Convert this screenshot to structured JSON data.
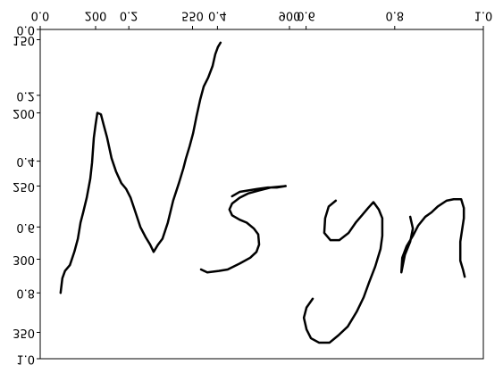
{
  "chart_data": {
    "type": "line",
    "color": "#000000",
    "y_inverted": true,
    "flipped_labels": true,
    "xlim": [
      0,
      1
    ],
    "xticks": [
      {
        "value": 0,
        "label": "0.0"
      },
      0.2,
      0.4,
      0.6,
      0.8,
      {
        "value": 1,
        "label": "1.0"
      }
    ],
    "ylim": [
      0,
      1
    ],
    "yticks": [
      {
        "value": 0,
        "label": "0.0"
      },
      0.2,
      0.4,
      0.6,
      0.8,
      {
        "value": 1,
        "label": "1.0"
      }
    ],
    "x2lim": [
      0,
      1600
    ],
    "x2ticks": [
      200,
      550,
      900
    ],
    "y2lim": [
      143,
      368
    ],
    "y2ticks": [
      150,
      200,
      250,
      300,
      350
    ],
    "series": [
      {
        "x": [
          0.046,
          0.05,
          0.056,
          0.067,
          0.077,
          0.085,
          0.091,
          0.097,
          0.105,
          0.113,
          0.117,
          0.121,
          0.125,
          0.129,
          0.137,
          0.143,
          0.151,
          0.161,
          0.171,
          0.183,
          0.194,
          0.204,
          0.214,
          0.226,
          0.238,
          0.248,
          0.256,
          0.266,
          0.276,
          0.288,
          0.3,
          0.313,
          0.323,
          0.329,
          0.337,
          0.345,
          0.353,
          0.361,
          0.369,
          0.379,
          0.389,
          0.395,
          0.401,
          0.407
        ],
        "values": [
          323,
          313,
          308,
          304,
          295,
          286,
          275,
          268,
          258,
          245,
          234,
          217,
          208,
          200,
          201,
          208,
          217,
          231,
          240,
          248,
          252,
          258,
          267,
          278,
          285,
          290,
          295,
          290,
          286,
          275,
          260,
          248,
          238,
          231,
          223,
          214,
          202,
          191,
          182,
          176,
          168,
          160,
          155,
          152
        ],
        "axis": "y2"
      },
      {
        "x": [
          0.433,
          0.45,
          0.47,
          0.49,
          0.514,
          0.534,
          0.554,
          0.52,
          0.494,
          0.47,
          0.45,
          0.433,
          0.427,
          0.433,
          0.45,
          0.466,
          0.482,
          0.492,
          0.494,
          0.488,
          0.474,
          0.45,
          0.423,
          0.403,
          0.377,
          0.363
        ],
        "values": [
          257,
          254,
          253,
          252,
          251,
          251,
          250,
          251,
          253,
          255,
          258,
          262,
          266,
          270,
          273,
          275,
          279,
          283,
          290,
          295,
          299,
          303,
          307,
          308,
          309,
          307
        ],
        "axis": "y2"
      },
      {
        "x": [
          0.667,
          0.651,
          0.643,
          0.641,
          0.655,
          0.675,
          0.696,
          0.712,
          0.726,
          0.74,
          0.752,
          0.764,
          0.772,
          0.772,
          0.768,
          0.756,
          0.742,
          0.73,
          0.714,
          0.694,
          0.673,
          0.653,
          0.629,
          0.611,
          0.601,
          0.595,
          0.601,
          0.615
        ],
        "values": [
          260,
          264,
          272,
          282,
          287,
          287,
          282,
          275,
          270,
          265,
          261,
          266,
          272,
          284,
          293,
          305,
          316,
          326,
          336,
          346,
          352,
          357,
          357,
          354,
          348,
          340,
          333,
          327
        ],
        "axis": "y2"
      },
      {
        "x": [
          0.835,
          0.841,
          0.835,
          0.823,
          0.815,
          0.817,
          0.827,
          0.841,
          0.853,
          0.869,
          0.883,
          0.897,
          0.917,
          0.933,
          0.95,
          0.956,
          0.956,
          0.952,
          0.948,
          0.948,
          0.954,
          0.958
        ],
        "values": [
          271,
          279,
          288,
          297,
          309,
          299,
          291,
          284,
          277,
          271,
          268,
          264,
          260,
          259,
          259,
          265,
          272,
          280,
          288,
          301,
          307,
          312
        ],
        "axis": "y2"
      }
    ]
  }
}
